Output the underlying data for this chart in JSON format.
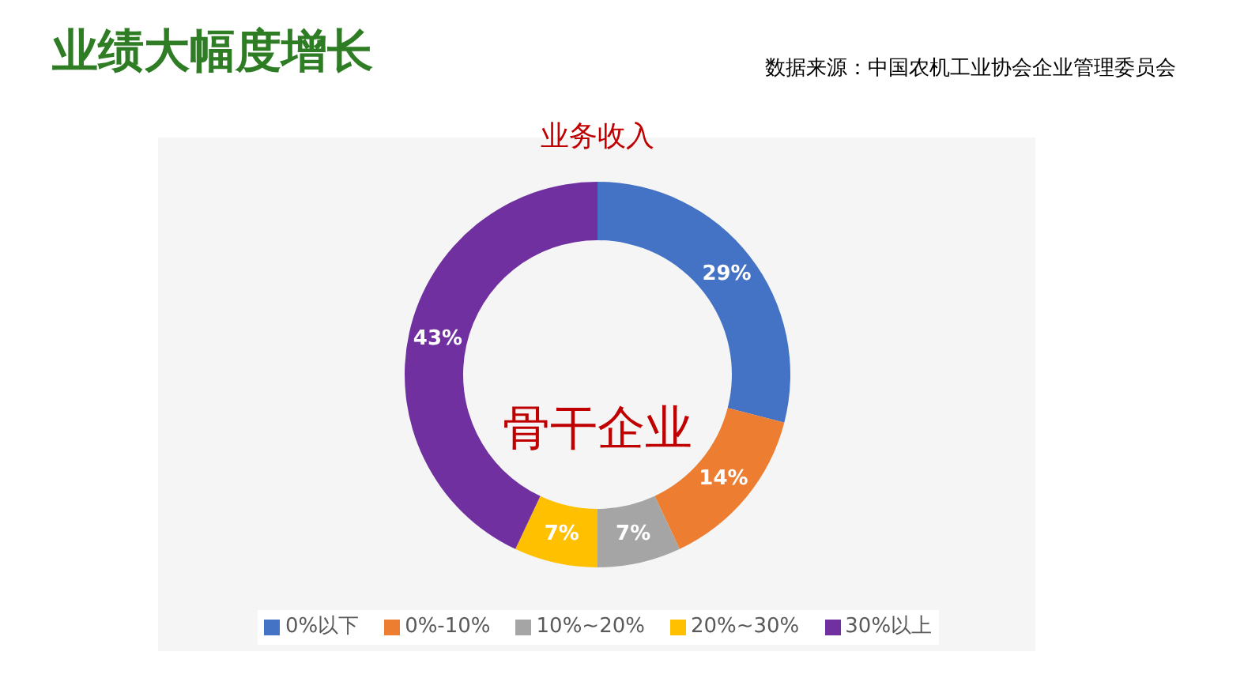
{
  "chart_data": {
    "type": "donut",
    "title": "业绩大幅度增长",
    "subtitle": "业务收入",
    "annotations": [
      "数据来源：中国农机工业协会企业管理委员会",
      "骨干企业"
    ],
    "categories": [
      "0%以下",
      "0%-10%",
      "10%~20%",
      "20%~30%",
      "30%以上"
    ],
    "values": [
      29,
      14,
      7,
      7,
      43
    ],
    "value_labels": [
      "29%",
      "14%",
      "7%",
      "7%",
      "43%"
    ],
    "colors": [
      "#4472c4",
      "#ed7d31",
      "#a5a5a5",
      "#ffc000",
      "#7030a0"
    ],
    "legend": "bottom"
  }
}
